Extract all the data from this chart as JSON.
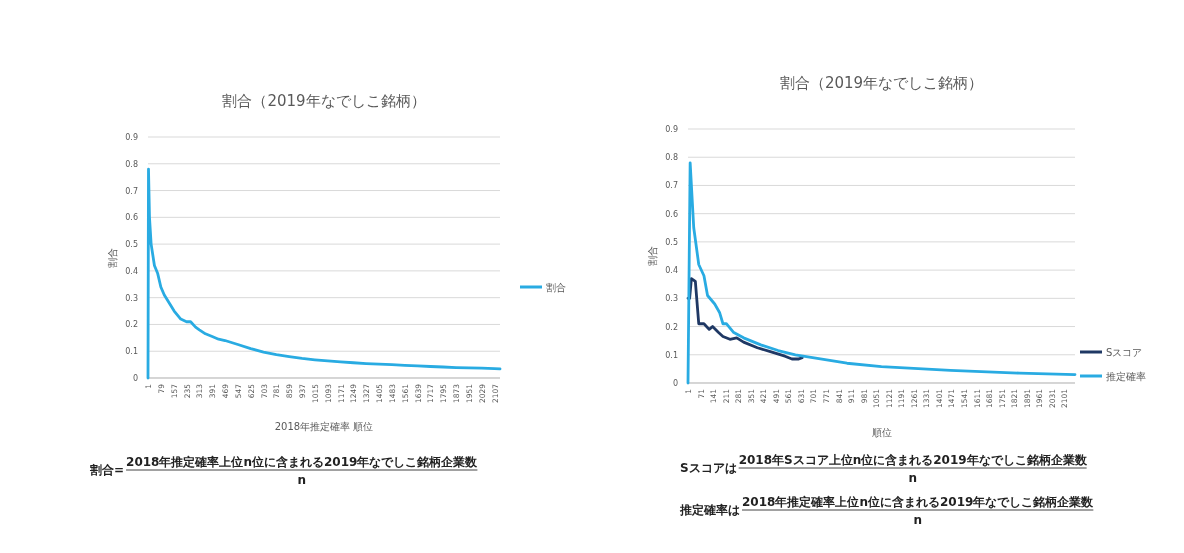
{
  "chart_data": [
    {
      "type": "line",
      "title": "割合（2019年なでしこ銘柄）",
      "xlabel": "2018年推定確率 順位",
      "ylabel": "割合",
      "grid": "y",
      "legend": "right",
      "xlim": [
        1,
        2140
      ],
      "xticks": [
        1,
        79,
        157,
        235,
        313,
        391,
        469,
        547,
        625,
        703,
        781,
        859,
        937,
        1015,
        1093,
        1171,
        1249,
        1327,
        1405,
        1483,
        1561,
        1639,
        1717,
        1795,
        1873,
        1951,
        2029,
        2107
      ],
      "ylim": [
        0,
        0.9
      ],
      "yticks": [
        0,
        0.1,
        0.2,
        0.3,
        0.4,
        0.5,
        0.6,
        0.7,
        0.8,
        0.9
      ],
      "annotations": [
        "割合=",
        "2018年推定確率上位n位に含まれる2019年なでしこ銘柄企業数",
        "n"
      ],
      "series": [
        {
          "name": "割合",
          "color": "#29abe2",
          "x": [
            1,
            4,
            10,
            20,
            40,
            60,
            79,
            100,
            130,
            160,
            200,
            235,
            260,
            290,
            313,
            350,
            391,
            430,
            469,
            547,
            625,
            703,
            781,
            859,
            937,
            1015,
            1093,
            1171,
            1249,
            1327,
            1405,
            1483,
            1561,
            1639,
            1717,
            1795,
            1873,
            1951,
            2029,
            2107,
            2140
          ],
          "values": [
            0,
            0.78,
            0.6,
            0.5,
            0.42,
            0.39,
            0.34,
            0.31,
            0.28,
            0.25,
            0.22,
            0.21,
            0.21,
            0.19,
            0.18,
            0.165,
            0.155,
            0.145,
            0.14,
            0.125,
            0.11,
            0.097,
            0.087,
            0.08,
            0.073,
            0.068,
            0.064,
            0.06,
            0.057,
            0.054,
            0.052,
            0.05,
            0.047,
            0.045,
            0.043,
            0.041,
            0.039,
            0.038,
            0.037,
            0.035,
            0.034
          ]
        }
      ]
    },
    {
      "type": "line",
      "title": "割合（2019年なでしこ銘柄）",
      "xlabel": "順位",
      "ylabel": "割合",
      "grid": "y",
      "legend": "right",
      "xlim": [
        1,
        2160
      ],
      "xticks": [
        1,
        71,
        141,
        211,
        281,
        351,
        421,
        491,
        561,
        631,
        701,
        771,
        841,
        911,
        981,
        1051,
        1121,
        1191,
        1261,
        1331,
        1401,
        1471,
        1541,
        1611,
        1681,
        1751,
        1821,
        1891,
        1961,
        2031,
        2101
      ],
      "ylim": [
        0,
        0.9
      ],
      "yticks": [
        0,
        0.1,
        0.2,
        0.3,
        0.4,
        0.5,
        0.6,
        0.7,
        0.8,
        0.9
      ],
      "annotations": [
        "Sスコアは",
        "2018年Sスコア上位n位に含まれる2019年なでしこ銘柄企業数",
        "n",
        "推定確率は",
        "2018年推定確率上位n位に含まれる2019年なでしこ銘柄企業数",
        "n"
      ],
      "series": [
        {
          "name": "Sスコア",
          "color": "#1f3864",
          "x": [
            1,
            10,
            20,
            42,
            61,
            90,
            119,
            138,
            170,
            196,
            235,
            273,
            311,
            388,
            465,
            542,
            581,
            619,
            638
          ],
          "values": [
            0.3,
            0.3,
            0.37,
            0.36,
            0.21,
            0.21,
            0.19,
            0.2,
            0.18,
            0.165,
            0.155,
            0.16,
            0.145,
            0.125,
            0.11,
            0.095,
            0.085,
            0.085,
            0.09
          ]
        },
        {
          "name": "推定確率",
          "color": "#29abe2",
          "x": [
            1,
            13,
            33,
            61,
            90,
            110,
            150,
            177,
            196,
            215,
            254,
            311,
            407,
            504,
            600,
            696,
            888,
            1080,
            1465,
            1850,
            2160
          ],
          "values": [
            0,
            0.78,
            0.55,
            0.42,
            0.38,
            0.31,
            0.28,
            0.25,
            0.21,
            0.21,
            0.18,
            0.16,
            0.135,
            0.115,
            0.1,
            0.09,
            0.07,
            0.058,
            0.045,
            0.035,
            0.03
          ]
        }
      ]
    }
  ]
}
